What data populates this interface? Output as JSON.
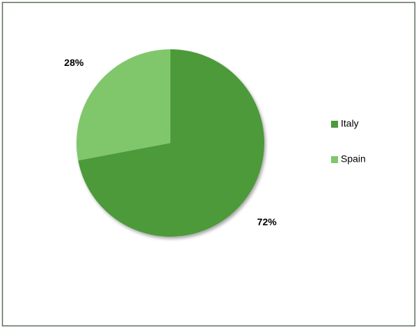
{
  "chart_data": {
    "type": "pie",
    "categories": [
      "Italy",
      "Spain"
    ],
    "values": [
      72,
      28
    ],
    "value_labels": [
      "72%",
      "28%"
    ],
    "colors": [
      "#4e9a3a",
      "#80c76c"
    ],
    "legend": "right"
  }
}
